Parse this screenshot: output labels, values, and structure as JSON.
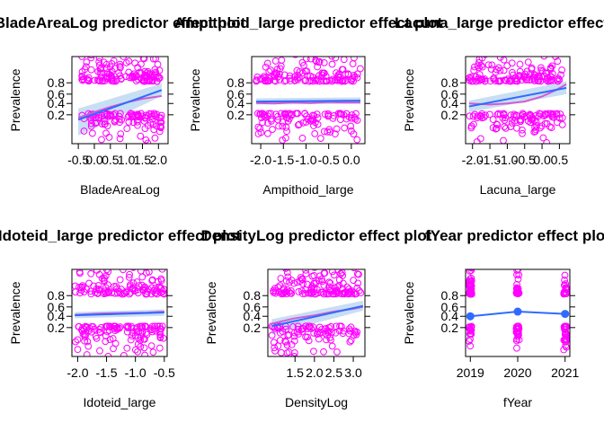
{
  "chart_data": [
    {
      "type": "scatter",
      "title": "BladeAreaLog predictor effect plot",
      "xlabel": "BladeAreaLog",
      "ylabel": "Prevalence",
      "xlim": [
        -0.7,
        2.3
      ],
      "xticks": [
        -0.5,
        0.0,
        0.5,
        1.0,
        1.5,
        2.0
      ],
      "xtick_labels": [
        "-0.5",
        "0.0",
        "0.5",
        "1.0",
        "1.5",
        "2.0"
      ],
      "yticks": [
        0.2,
        0.4,
        0.6,
        0.8
      ],
      "ytick_labels": [
        "0.2",
        "0.4",
        "0.6",
        "0.8"
      ],
      "points_range": [
        -0.4,
        2.1
      ],
      "fit": {
        "x": [
          -0.5,
          2.1
        ],
        "y": [
          0.14,
          0.68
        ]
      },
      "band": {
        "lower": [
          0.04,
          0.56
        ],
        "upper": [
          0.3,
          0.79
        ]
      },
      "smooth": {
        "x": [
          -0.5,
          0.0,
          0.5,
          1.0,
          1.5,
          2.1
        ],
        "y": [
          0.16,
          0.24,
          0.33,
          0.42,
          0.5,
          0.56
        ]
      }
    },
    {
      "type": "scatter",
      "title": "Ampithoid_large predictor effect plot",
      "xlabel": "Ampithoid_large",
      "ylabel": "Prevalence",
      "xlim": [
        -2.2,
        0.3
      ],
      "xticks": [
        -2.0,
        -1.5,
        -1.0,
        -0.5,
        0.0
      ],
      "xtick_labels": [
        "-2.0",
        "-1.5",
        "-1.0",
        "-0.5",
        "0.0"
      ],
      "yticks": [
        0.2,
        0.4,
        0.6,
        0.8
      ],
      "ytick_labels": [
        "0.2",
        "0.4",
        "0.6",
        "0.8"
      ],
      "points_range": [
        -2.1,
        0.2
      ],
      "fit": {
        "x": [
          -2.1,
          0.2
        ],
        "y": [
          0.44,
          0.46
        ]
      },
      "band": {
        "lower": [
          0.38,
          0.39
        ],
        "upper": [
          0.51,
          0.53
        ]
      },
      "smooth": {
        "x": [
          -2.1,
          -1.7,
          -1.3,
          -0.9,
          -0.5,
          -0.1,
          0.2
        ],
        "y": [
          0.41,
          0.4,
          0.42,
          0.41,
          0.43,
          0.42,
          0.42
        ]
      }
    },
    {
      "type": "scatter",
      "title": "Lacuna_large predictor effect plot",
      "xlabel": "Lacuna_large",
      "ylabel": "Prevalence",
      "xlim": [
        -2.2,
        0.8
      ],
      "xticks": [
        -2.0,
        -1.5,
        -1.0,
        -0.5,
        0.0,
        0.5
      ],
      "xtick_labels": [
        "-2.0",
        "-1.5",
        "-1.0",
        "-0.5",
        "0.0",
        "0.5"
      ],
      "yticks": [
        0.2,
        0.4,
        0.6,
        0.8
      ],
      "ytick_labels": [
        "0.2",
        "0.4",
        "0.6",
        "0.8"
      ],
      "points_range": [
        -2.1,
        0.6
      ],
      "fit": {
        "x": [
          -2.1,
          0.7
        ],
        "y": [
          0.34,
          0.72
        ]
      },
      "band": {
        "lower": [
          0.24,
          0.6
        ],
        "upper": [
          0.46,
          0.82
        ]
      },
      "smooth": {
        "x": [
          -2.1,
          -1.5,
          -1.0,
          -0.5,
          0.0,
          0.4,
          0.7
        ],
        "y": [
          0.4,
          0.38,
          0.4,
          0.44,
          0.55,
          0.68,
          0.78
        ]
      }
    },
    {
      "type": "scatter",
      "title": "Idoteid_large predictor effect plot",
      "xlabel": "Idoteid_large",
      "ylabel": "Prevalence",
      "xlim": [
        -2.1,
        -0.45
      ],
      "xticks": [
        -2.0,
        -1.5,
        -1.0,
        -0.5
      ],
      "xtick_labels": [
        "-2.0",
        "-1.5",
        "-1.0",
        "-0.5"
      ],
      "yticks": [
        0.2,
        0.4,
        0.6,
        0.8
      ],
      "ytick_labels": [
        "0.2",
        "0.4",
        "0.6",
        "0.8"
      ],
      "points_range": [
        -2.05,
        -0.5
      ],
      "fit": {
        "x": [
          -2.05,
          -0.5
        ],
        "y": [
          0.42,
          0.48
        ]
      },
      "band": {
        "lower": [
          0.36,
          0.41
        ],
        "upper": [
          0.49,
          0.55
        ]
      },
      "smooth": {
        "x": [
          -2.05,
          -1.6,
          -1.2,
          -0.8,
          -0.5
        ],
        "y": [
          0.43,
          0.46,
          0.47,
          0.48,
          0.5
        ]
      }
    },
    {
      "type": "scatter",
      "title": "DensityLog predictor effect plot",
      "xlabel": "DensityLog",
      "ylabel": "Prevalence",
      "xlim": [
        0.8,
        3.3
      ],
      "xticks": [
        1.5,
        2.0,
        2.5,
        3.0
      ],
      "xtick_labels": [
        "1.5",
        "2.0",
        "2.5",
        "3.0"
      ],
      "yticks": [
        0.2,
        0.4,
        0.6,
        0.8
      ],
      "ytick_labels": [
        "0.2",
        "0.4",
        "0.6",
        "0.8"
      ],
      "points_range": [
        0.9,
        3.2
      ],
      "fit": {
        "x": [
          0.9,
          3.25
        ],
        "y": [
          0.22,
          0.62
        ]
      },
      "band": {
        "lower": [
          0.12,
          0.52
        ],
        "upper": [
          0.34,
          0.72
        ]
      },
      "smooth": {
        "x": [
          0.9,
          1.5,
          2.0,
          2.5,
          3.0,
          3.25
        ],
        "y": [
          0.26,
          0.36,
          0.42,
          0.5,
          0.56,
          0.6
        ]
      }
    },
    {
      "type": "scatter",
      "title": "fYear predictor effect plot",
      "xlabel": "fYear",
      "ylabel": "Prevalence",
      "xlim": [
        2018.9,
        2021.1
      ],
      "xticks": [
        2019,
        2020,
        2021
      ],
      "xtick_labels": [
        "2019",
        "2020",
        "2021"
      ],
      "yticks": [
        0.2,
        0.4,
        0.6,
        0.8
      ],
      "ytick_labels": [
        "0.2",
        "0.4",
        "0.6",
        "0.8"
      ],
      "categorical": true,
      "points_range": [
        2019,
        2021
      ],
      "fit": {
        "x": [
          2019,
          2020,
          2021
        ],
        "y": [
          0.4,
          0.5,
          0.45
        ]
      },
      "errorbars": {
        "lower": [
          0.32,
          0.44,
          0.38
        ],
        "upper": [
          0.48,
          0.56,
          0.52
        ]
      }
    }
  ]
}
